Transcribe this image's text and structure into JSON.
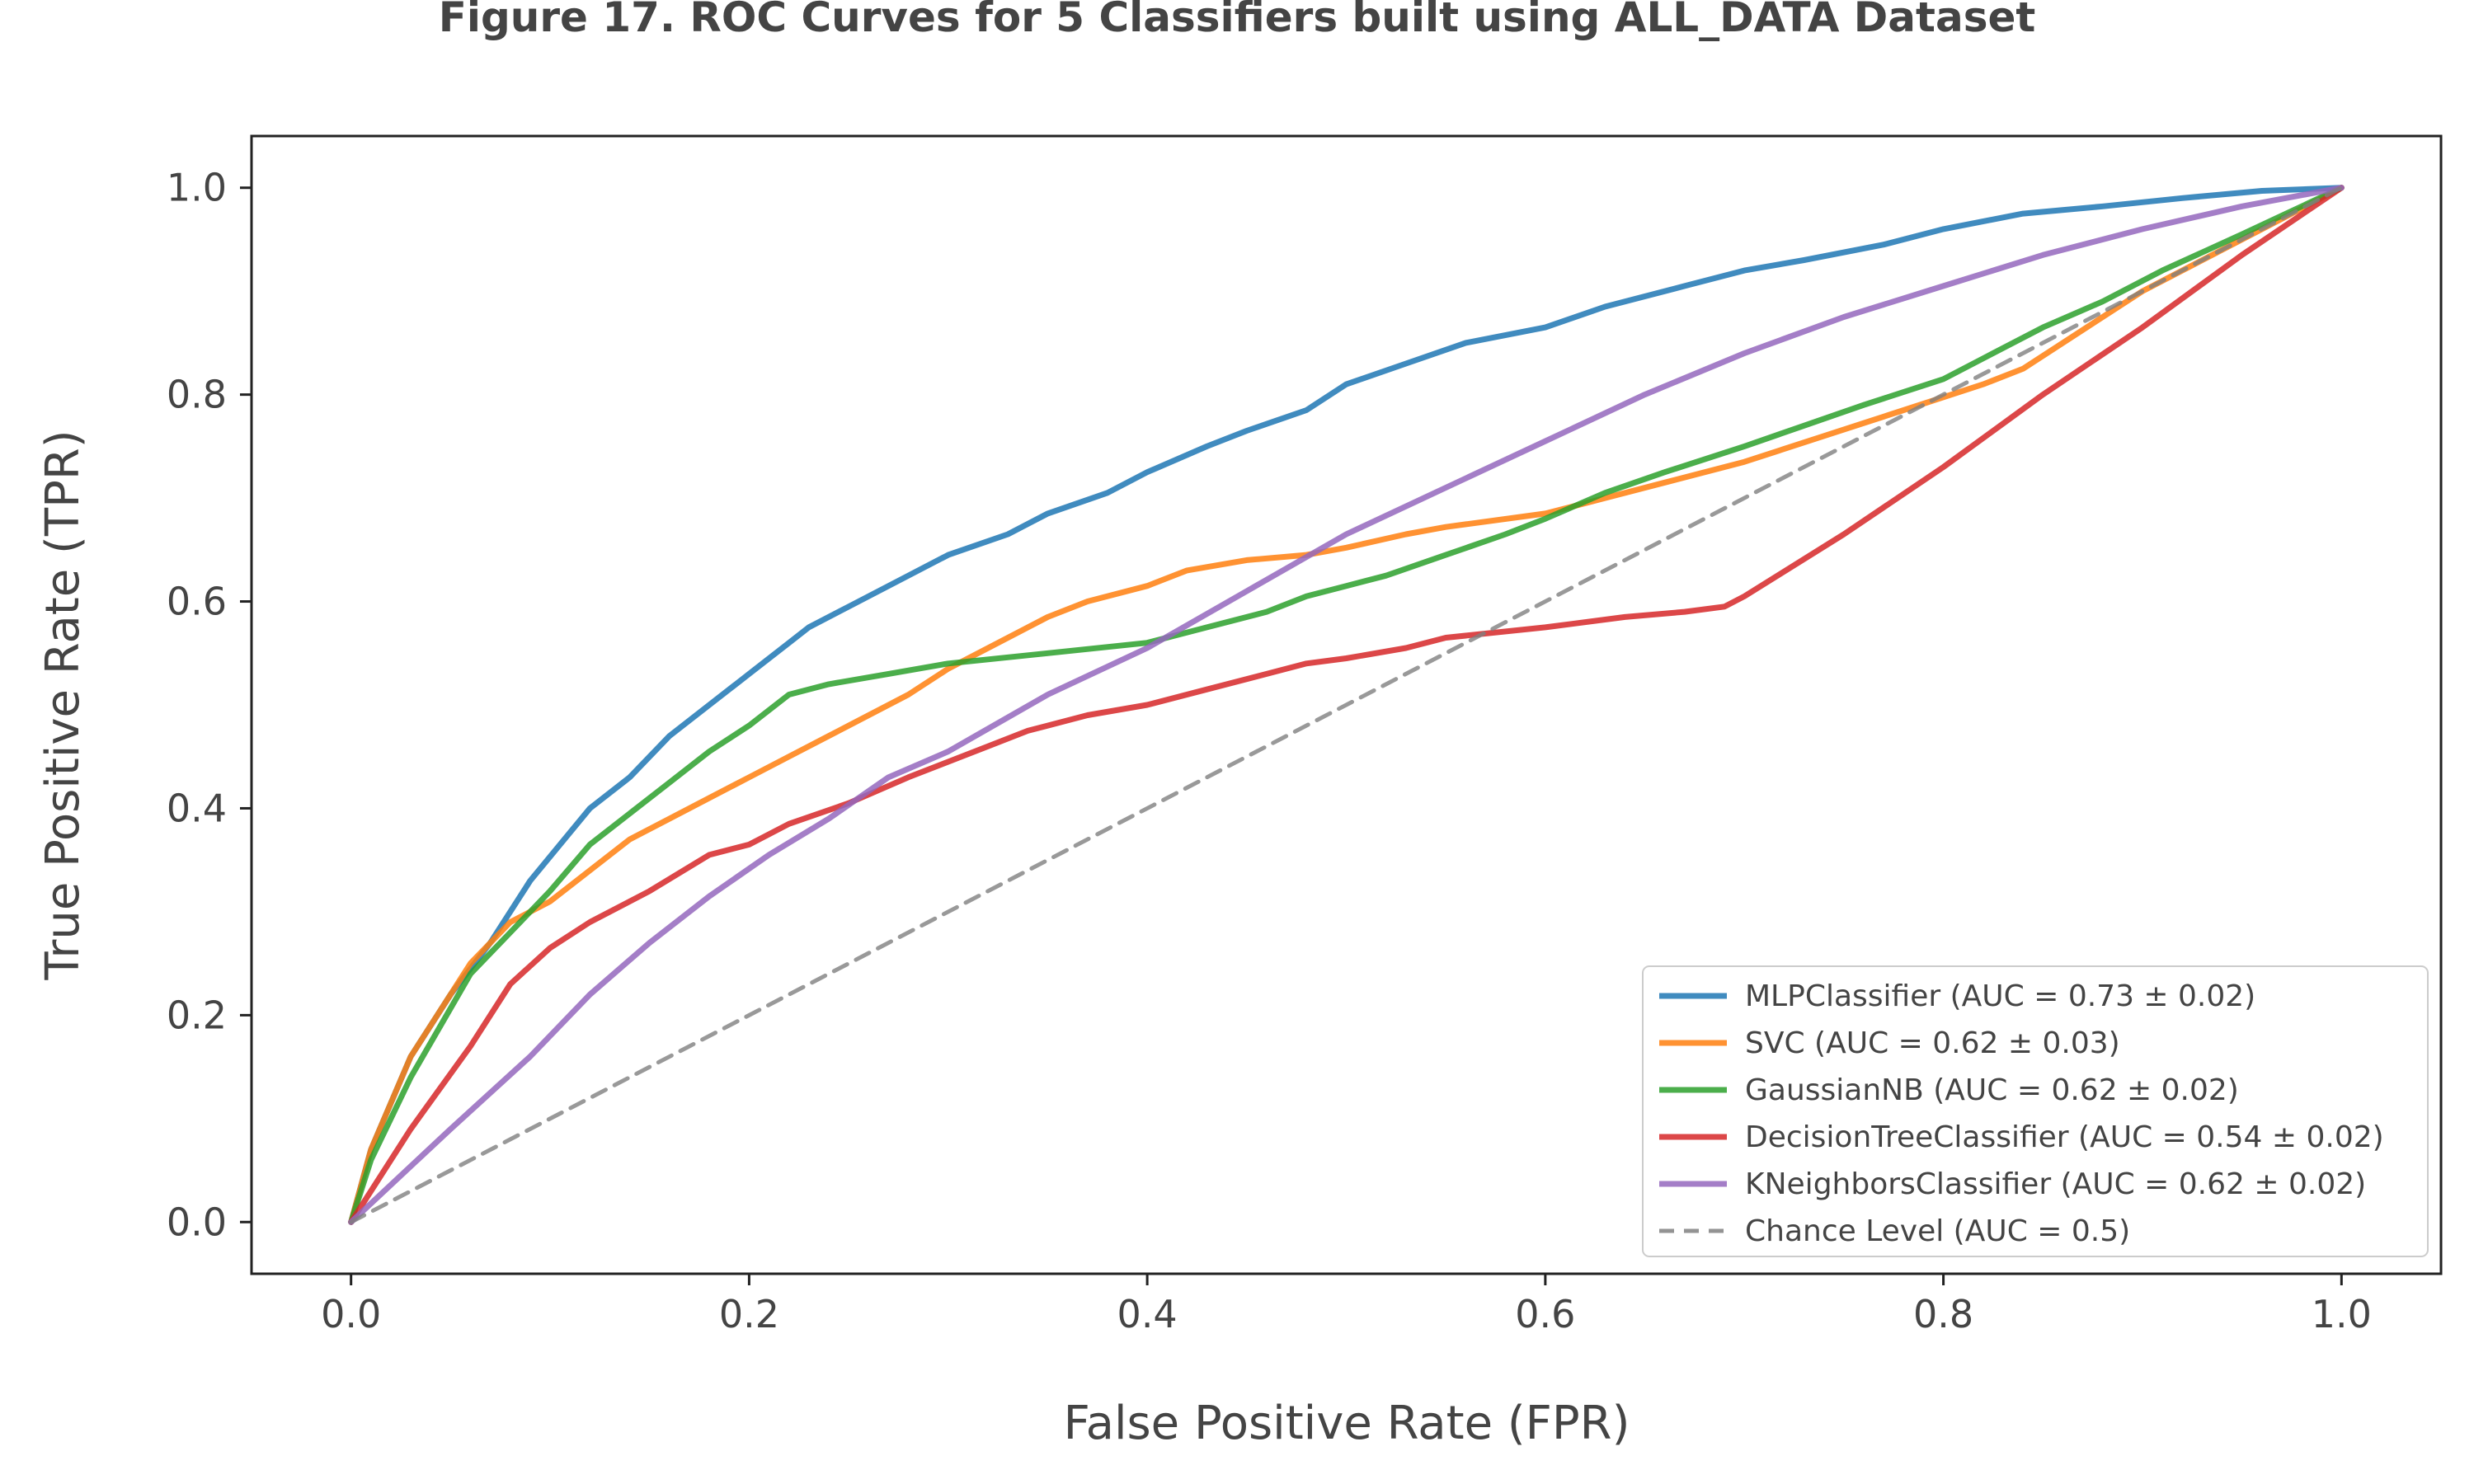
{
  "chart_data": {
    "type": "line",
    "title": "Figure 17. ROC Curves for 5 Classifiers built using ALL_DATA Dataset",
    "xlabel": "False Positive Rate (FPR)",
    "ylabel": "True Positive Rate (TPR)",
    "xlim": [
      -0.05,
      1.05
    ],
    "ylim": [
      -0.05,
      1.05
    ],
    "xticks": [
      "0.0",
      "0.2",
      "0.4",
      "0.6",
      "0.8",
      "1.0"
    ],
    "yticks": [
      "0.0",
      "0.2",
      "0.4",
      "0.6",
      "0.8",
      "1.0"
    ],
    "grid": false,
    "legend_position": "lower-right",
    "series": [
      {
        "name": "MLPClassifier (AUC = 0.73 ± 0.02)",
        "color": "#1f77b4",
        "dash": "solid",
        "x": [
          0,
          0.01,
          0.03,
          0.05,
          0.07,
          0.09,
          0.12,
          0.14,
          0.16,
          0.18,
          0.2,
          0.22,
          0.23,
          0.25,
          0.28,
          0.3,
          0.33,
          0.35,
          0.38,
          0.4,
          0.43,
          0.45,
          0.48,
          0.5,
          0.53,
          0.56,
          0.6,
          0.63,
          0.67,
          0.7,
          0.73,
          0.77,
          0.8,
          0.84,
          0.88,
          0.92,
          0.96,
          1.0
        ],
        "y": [
          0,
          0.07,
          0.16,
          0.22,
          0.27,
          0.33,
          0.4,
          0.43,
          0.47,
          0.5,
          0.53,
          0.56,
          0.575,
          0.595,
          0.625,
          0.645,
          0.665,
          0.685,
          0.705,
          0.725,
          0.75,
          0.765,
          0.785,
          0.81,
          0.83,
          0.85,
          0.865,
          0.885,
          0.905,
          0.92,
          0.93,
          0.945,
          0.96,
          0.975,
          0.982,
          0.99,
          0.997,
          1.0
        ]
      },
      {
        "name": "SVC (AUC = 0.62 ± 0.03)",
        "color": "#ff7f0e",
        "dash": "solid",
        "x": [
          0,
          0.01,
          0.03,
          0.06,
          0.08,
          0.1,
          0.12,
          0.14,
          0.16,
          0.18,
          0.2,
          0.22,
          0.25,
          0.28,
          0.3,
          0.33,
          0.35,
          0.37,
          0.4,
          0.42,
          0.45,
          0.48,
          0.5,
          0.53,
          0.55,
          0.6,
          0.63,
          0.66,
          0.7,
          0.74,
          0.78,
          0.82,
          0.84,
          0.86,
          0.9,
          0.95,
          1.0
        ],
        "y": [
          0,
          0.07,
          0.16,
          0.25,
          0.29,
          0.31,
          0.34,
          0.37,
          0.39,
          0.41,
          0.43,
          0.45,
          0.48,
          0.51,
          0.535,
          0.565,
          0.585,
          0.6,
          0.615,
          0.63,
          0.64,
          0.645,
          0.652,
          0.665,
          0.672,
          0.685,
          0.7,
          0.715,
          0.735,
          0.76,
          0.785,
          0.81,
          0.825,
          0.85,
          0.9,
          0.95,
          1.0
        ]
      },
      {
        "name": "GaussianNB (AUC = 0.62 ± 0.02)",
        "color": "#2ca02c",
        "dash": "solid",
        "x": [
          0,
          0.01,
          0.03,
          0.06,
          0.08,
          0.1,
          0.12,
          0.14,
          0.16,
          0.18,
          0.2,
          0.22,
          0.24,
          0.27,
          0.3,
          0.35,
          0.4,
          0.43,
          0.46,
          0.48,
          0.5,
          0.52,
          0.55,
          0.58,
          0.6,
          0.63,
          0.66,
          0.7,
          0.73,
          0.76,
          0.8,
          0.82,
          0.85,
          0.88,
          0.91,
          0.95,
          1.0
        ],
        "y": [
          0,
          0.06,
          0.14,
          0.24,
          0.28,
          0.32,
          0.365,
          0.395,
          0.425,
          0.455,
          0.48,
          0.51,
          0.52,
          0.53,
          0.54,
          0.55,
          0.56,
          0.575,
          0.59,
          0.605,
          0.615,
          0.625,
          0.645,
          0.665,
          0.68,
          0.705,
          0.725,
          0.75,
          0.77,
          0.79,
          0.815,
          0.835,
          0.865,
          0.89,
          0.92,
          0.955,
          1.0
        ]
      },
      {
        "name": "DecisionTreeClassifier (AUC = 0.54 ± 0.02)",
        "color": "#d62728",
        "dash": "solid",
        "x": [
          0,
          0.03,
          0.06,
          0.08,
          0.1,
          0.12,
          0.15,
          0.18,
          0.2,
          0.22,
          0.25,
          0.28,
          0.3,
          0.32,
          0.34,
          0.37,
          0.4,
          0.43,
          0.46,
          0.48,
          0.5,
          0.53,
          0.55,
          0.6,
          0.64,
          0.67,
          0.69,
          0.7,
          0.75,
          0.8,
          0.85,
          0.9,
          0.95,
          1.0
        ],
        "y": [
          0,
          0.09,
          0.17,
          0.23,
          0.265,
          0.29,
          0.32,
          0.355,
          0.365,
          0.385,
          0.405,
          0.43,
          0.445,
          0.46,
          0.475,
          0.49,
          0.5,
          0.515,
          0.53,
          0.54,
          0.545,
          0.555,
          0.565,
          0.575,
          0.585,
          0.59,
          0.595,
          0.605,
          0.665,
          0.73,
          0.8,
          0.865,
          0.935,
          1.0
        ]
      },
      {
        "name": "KNeighborsClassifier (AUC = 0.62 ± 0.02)",
        "color": "#9467bd",
        "dash": "solid",
        "x": [
          0,
          0.05,
          0.09,
          0.12,
          0.15,
          0.18,
          0.21,
          0.24,
          0.27,
          0.3,
          0.35,
          0.4,
          0.45,
          0.5,
          0.55,
          0.6,
          0.65,
          0.7,
          0.75,
          0.8,
          0.85,
          0.9,
          0.95,
          1.0
        ],
        "y": [
          0,
          0.09,
          0.16,
          0.22,
          0.27,
          0.315,
          0.355,
          0.39,
          0.43,
          0.455,
          0.51,
          0.555,
          0.61,
          0.665,
          0.71,
          0.755,
          0.8,
          0.84,
          0.875,
          0.905,
          0.935,
          0.96,
          0.982,
          1.0
        ]
      },
      {
        "name": "Chance Level (AUC = 0.5)",
        "color": "#808080",
        "dash": "dashed",
        "x": [
          0,
          1
        ],
        "y": [
          0,
          1
        ]
      }
    ]
  }
}
